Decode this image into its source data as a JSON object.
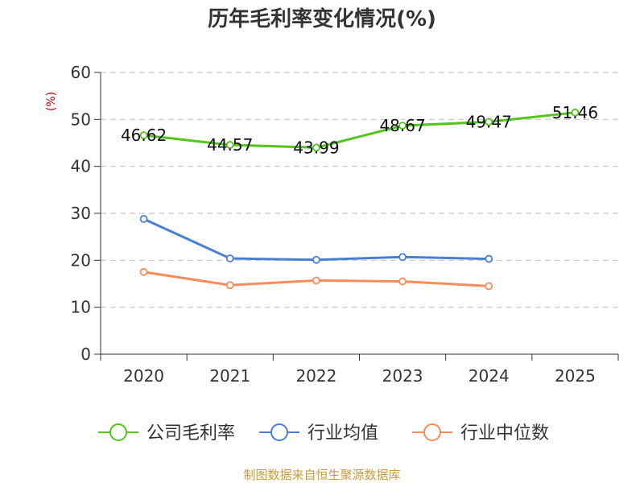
{
  "chart_data": {
    "type": "line",
    "title": "历年毛利率变化情况(%)",
    "xlabel": "",
    "ylabel": "(%)",
    "categories": [
      "2020",
      "2021",
      "2022",
      "2023",
      "2024",
      "2025"
    ],
    "ylim": [
      0,
      60
    ],
    "yticks": [
      0,
      10,
      20,
      30,
      40,
      50,
      60
    ],
    "grid": true,
    "legend_position": "bottom",
    "series": [
      {
        "name": "公司毛利率",
        "color": "#52c41a",
        "values": [
          46.62,
          44.57,
          43.99,
          48.67,
          49.47,
          51.46
        ],
        "labels": [
          "46.62",
          "44.57",
          "43.99",
          "48.67",
          "49.47",
          "51.46"
        ],
        "show_labels": true
      },
      {
        "name": "行业均值",
        "color": "#4a7fd4",
        "values": [
          28.8,
          20.4,
          20.1,
          20.7,
          20.3,
          null
        ],
        "show_labels": false
      },
      {
        "name": "行业中位数",
        "color": "#fa8c5a",
        "values": [
          17.5,
          14.7,
          15.7,
          15.5,
          14.5,
          null
        ],
        "show_labels": false
      }
    ],
    "source": "制图数据来自恒生聚源数据库"
  }
}
